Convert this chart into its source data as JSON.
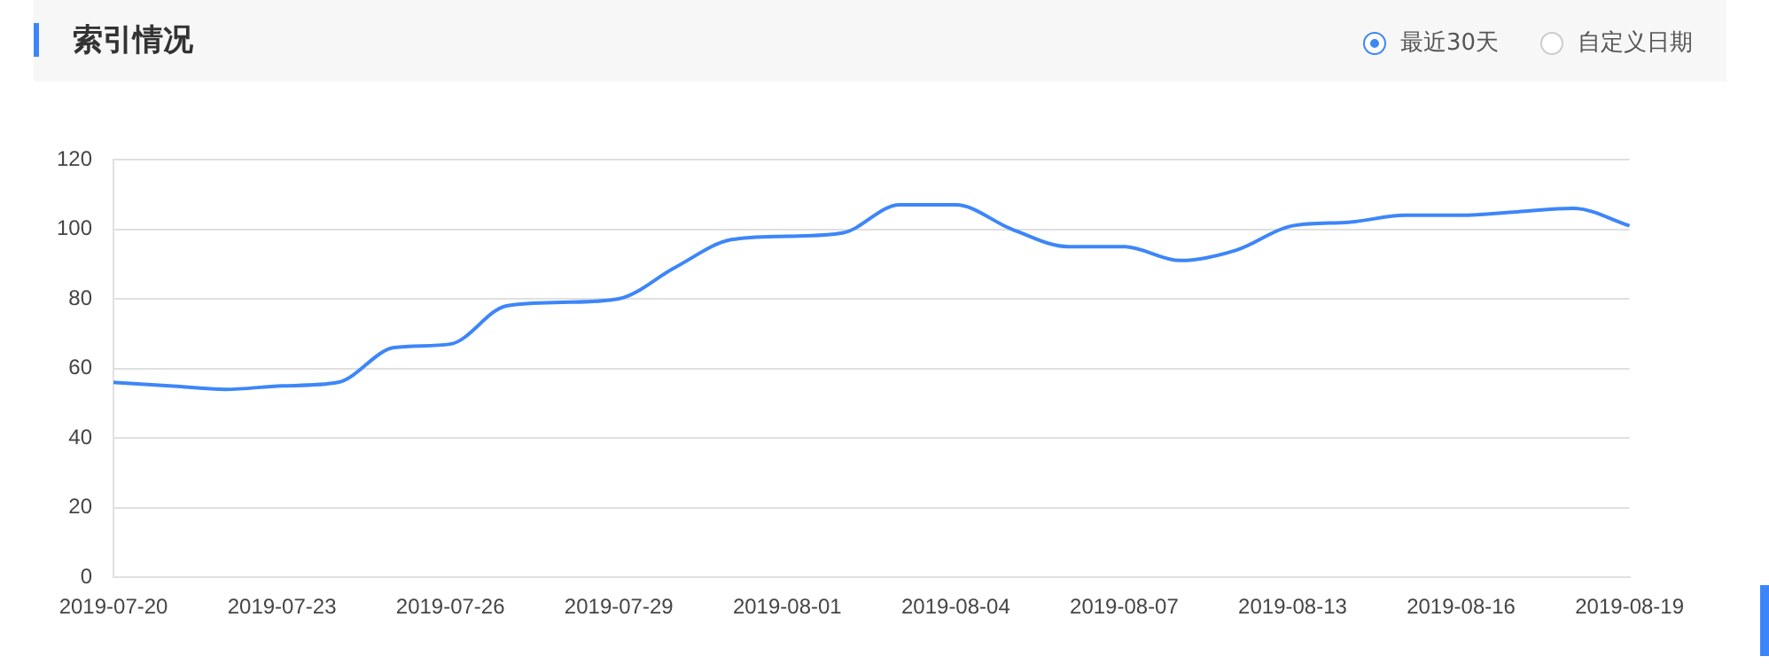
{
  "chart_data": {
    "type": "line",
    "title": "索引情况",
    "annotations": [
      "最近30天",
      "自定义日期"
    ],
    "categories": [
      "2019-07-20",
      null,
      null,
      "2019-07-23",
      null,
      null,
      "2019-07-26",
      null,
      null,
      "2019-07-29",
      null,
      null,
      "2019-08-01",
      null,
      null,
      "2019-08-04",
      null,
      null,
      "2019-08-07",
      null,
      null,
      "2019-08-13",
      null,
      null,
      "2019-08-16",
      null,
      null,
      "2019-08-19"
    ],
    "series": [
      {
        "color": "#3d86f8",
        "values": [
          56,
          55,
          54,
          55,
          56,
          66,
          67,
          78,
          79,
          80,
          89,
          97,
          98,
          99,
          107,
          107,
          100,
          95,
          95,
          91,
          94,
          101,
          102,
          104,
          104,
          105,
          106,
          101
        ]
      }
    ],
    "ylim": [
      0,
      120
    ],
    "yticks": [
      0,
      20,
      40,
      60,
      80,
      100,
      120
    ],
    "grid": "y",
    "legend": false,
    "marker": "none",
    "line_style": "solid"
  }
}
